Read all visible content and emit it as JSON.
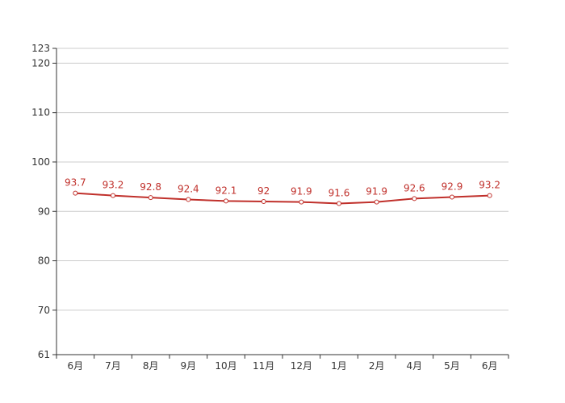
{
  "chart_data": {
    "type": "line",
    "categories": [
      "6月",
      "7月",
      "8月",
      "9月",
      "10月",
      "11月",
      "12月",
      "1月",
      "2月",
      "4月",
      "5月",
      "6月"
    ],
    "series": [
      {
        "values": [
          93.7,
          93.2,
          92.8,
          92.4,
          92.1,
          92,
          91.9,
          91.6,
          91.9,
          92.6,
          92.9,
          93.2
        ]
      }
    ],
    "ylim": [
      61,
      123
    ],
    "yticks": [
      "61",
      "70",
      "80",
      "90",
      "100",
      "110",
      "120",
      "123"
    ],
    "grid": true,
    "legend": "none",
    "colors": {
      "line": "#c0302b",
      "grid": "#cccccc",
      "axis": "#333333",
      "point_fill": "#ffffff"
    }
  }
}
